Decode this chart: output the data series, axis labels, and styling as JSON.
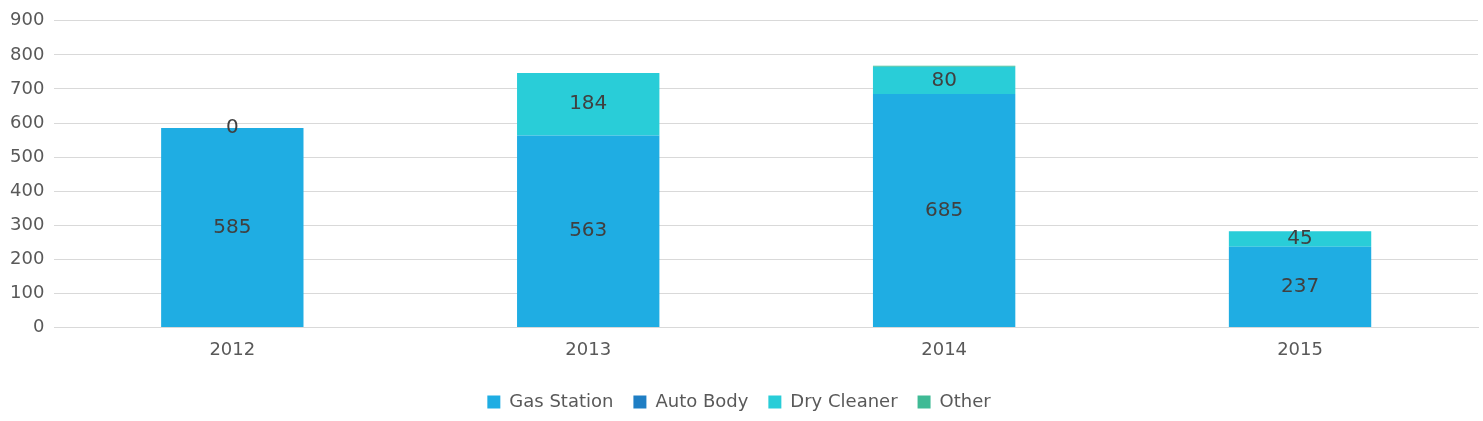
{
  "chart_data": {
    "type": "bar",
    "stacked": true,
    "categories": [
      "2012",
      "2013",
      "2014",
      "2015"
    ],
    "series": [
      {
        "name": "Gas Station",
        "color": "#1fade3",
        "values": [
          585,
          563,
          685,
          237
        ],
        "value_labels": [
          "585",
          "563",
          "685",
          "237"
        ]
      },
      {
        "name": "Auto Body",
        "color": "#1f7ec4",
        "values": [
          0,
          0,
          0,
          0
        ]
      },
      {
        "name": "Dry Cleaner",
        "color": "#29cdd8",
        "values": [
          0,
          184,
          80,
          45
        ],
        "value_labels": [
          "0",
          "184",
          "80",
          "45"
        ]
      },
      {
        "name": "Other",
        "color": "#3fba95",
        "values": [
          0,
          0,
          3,
          0
        ]
      }
    ],
    "ylim": [
      0,
      900
    ],
    "yticks": [
      0,
      100,
      200,
      300,
      400,
      500,
      600,
      700,
      800,
      900
    ],
    "grid": "y",
    "legend": "bottom"
  }
}
